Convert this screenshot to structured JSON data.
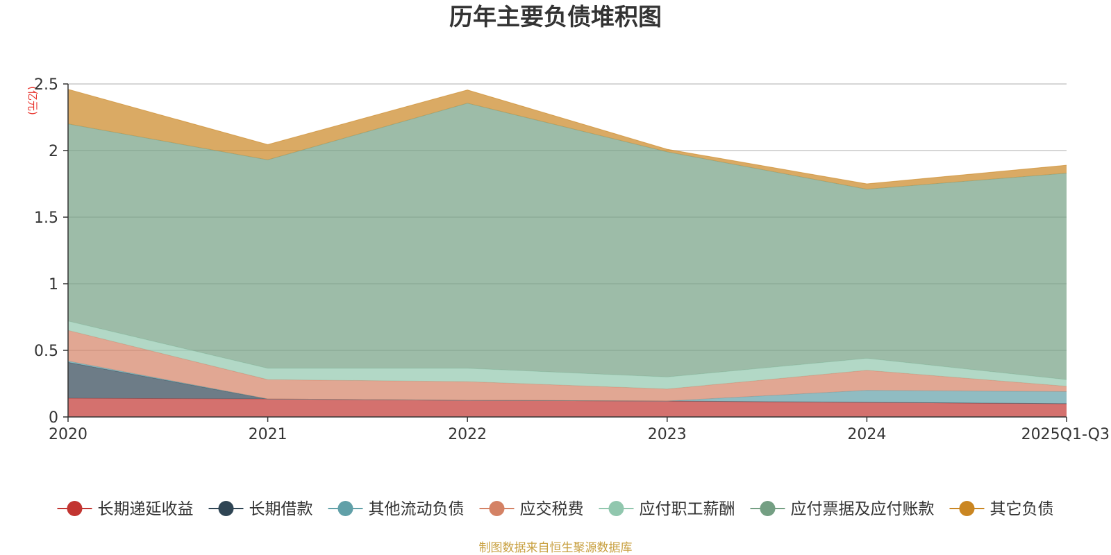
{
  "chart_data": {
    "type": "area",
    "stacked": true,
    "title": "历年主要负债堆积图",
    "unit_label": "(亿元)",
    "source_note": "制图数据来自恒生聚源数据库",
    "categories": [
      "2020",
      "2021",
      "2022",
      "2023",
      "2024",
      "2025Q1-Q3"
    ],
    "ylim": [
      0,
      2.5
    ],
    "yticks": [
      "0",
      "0.5",
      "1",
      "1.5",
      "2",
      "2.5"
    ],
    "ytick_values": [
      0,
      0.5,
      1,
      1.5,
      2,
      2.5
    ],
    "grid": true,
    "legend_position": "bottom",
    "series": [
      {
        "name": "长期递延收益",
        "color": "#c23531",
        "values": [
          0.14,
          0.135,
          0.125,
          0.12,
          0.11,
          0.1
        ]
      },
      {
        "name": "长期借款",
        "color": "#2f4554",
        "values": [
          0.27,
          0.0,
          0.0,
          0.0,
          0.0,
          0.0
        ]
      },
      {
        "name": "其他流动负债",
        "color": "#61a0a8",
        "values": [
          0.01,
          0.0,
          0.0,
          0.0,
          0.09,
          0.09
        ]
      },
      {
        "name": "应交税费",
        "color": "#d48265",
        "values": [
          0.23,
          0.145,
          0.14,
          0.09,
          0.15,
          0.04
        ]
      },
      {
        "name": "应付职工薪酬",
        "color": "#91c7ae",
        "values": [
          0.07,
          0.085,
          0.1,
          0.09,
          0.09,
          0.05
        ]
      },
      {
        "name": "应付票据及应付账款",
        "color": "#749f83",
        "values": [
          1.48,
          1.565,
          1.99,
          1.69,
          1.27,
          1.55
        ]
      },
      {
        "name": "其它负债",
        "color": "#ca8622",
        "values": [
          0.26,
          0.115,
          0.1,
          0.02,
          0.04,
          0.06
        ]
      }
    ]
  }
}
